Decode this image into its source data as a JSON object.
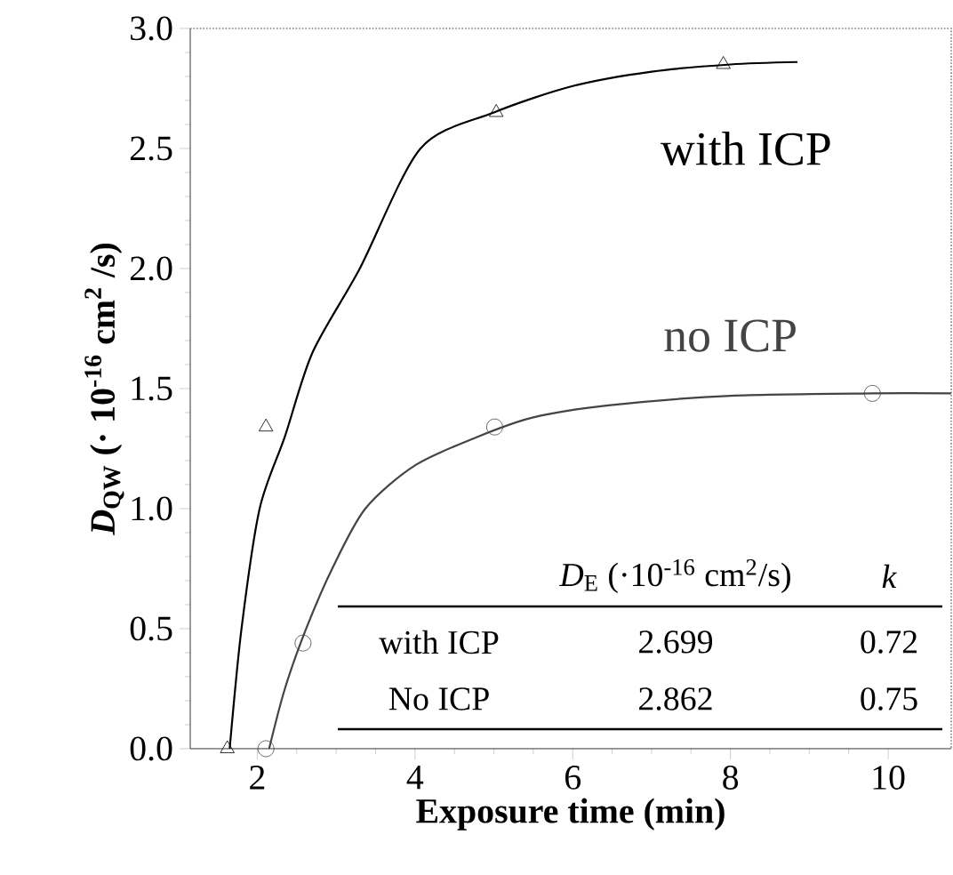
{
  "chart_data": {
    "type": "scatter",
    "xlabel": "Exposure time (min)",
    "ylabel": "*D*$_{QW}$  (· 10$^{-16}$ cm$^{2}$ /s)",
    "xlim": [
      1.15,
      10.8
    ],
    "ylim": [
      0,
      3
    ],
    "xticks": [
      2,
      4,
      6,
      8,
      10
    ],
    "yticks": [
      {
        "value": 0,
        "label": "0.0"
      },
      {
        "value": 0.5,
        "label": "0.5"
      },
      {
        "value": 1,
        "label": "1.0"
      },
      {
        "value": 1.5,
        "label": "1.5"
      },
      {
        "value": 2,
        "label": "2.0"
      },
      {
        "value": 2.5,
        "label": "2.5"
      },
      {
        "value": 3,
        "label": "3.0"
      }
    ],
    "grid": false,
    "legend": false,
    "series": [
      {
        "marker": "triangle",
        "color": "#000000",
        "x": [
          1.62,
          2.11,
          5.03,
          7.91
        ],
        "values": [
          0,
          1.34,
          2.65,
          2.85
        ]
      },
      {
        "marker": "circle",
        "color": "#444444",
        "x": [
          2.11,
          2.58,
          5.01,
          9.8
        ],
        "values": [
          0,
          0.44,
          1.34,
          1.48
        ]
      },
      {
        "type": "line",
        "name": "with ICP",
        "color": "#000000",
        "x": [
          1.65,
          1.8,
          2.03,
          2.35,
          2.7,
          3.3,
          4.07,
          5.0,
          6,
          7,
          8,
          8.85
        ],
        "values": [
          0,
          0.5,
          1.0,
          1.3,
          1.65,
          2.0,
          2.5,
          2.65,
          2.76,
          2.82,
          2.85,
          2.86
        ]
      },
      {
        "type": "line",
        "name": "no ICP",
        "color": "#444444",
        "x": [
          2.15,
          2.35,
          2.62,
          2.95,
          3.37,
          4.0,
          4.8,
          5.5,
          6.45,
          8,
          9.8,
          10.8
        ],
        "values": [
          0,
          0.25,
          0.5,
          0.75,
          1.0,
          1.18,
          1.3,
          1.38,
          1.43,
          1.47,
          1.48,
          1.48
        ]
      }
    ],
    "annotations": [
      "*D*$_{E}$ (·10$^{-16}$ cm$^{2}$/s)",
      "k",
      "with ICP",
      "2.699",
      "0.72",
      "No ICP",
      "2.862",
      "0.75"
    ]
  }
}
